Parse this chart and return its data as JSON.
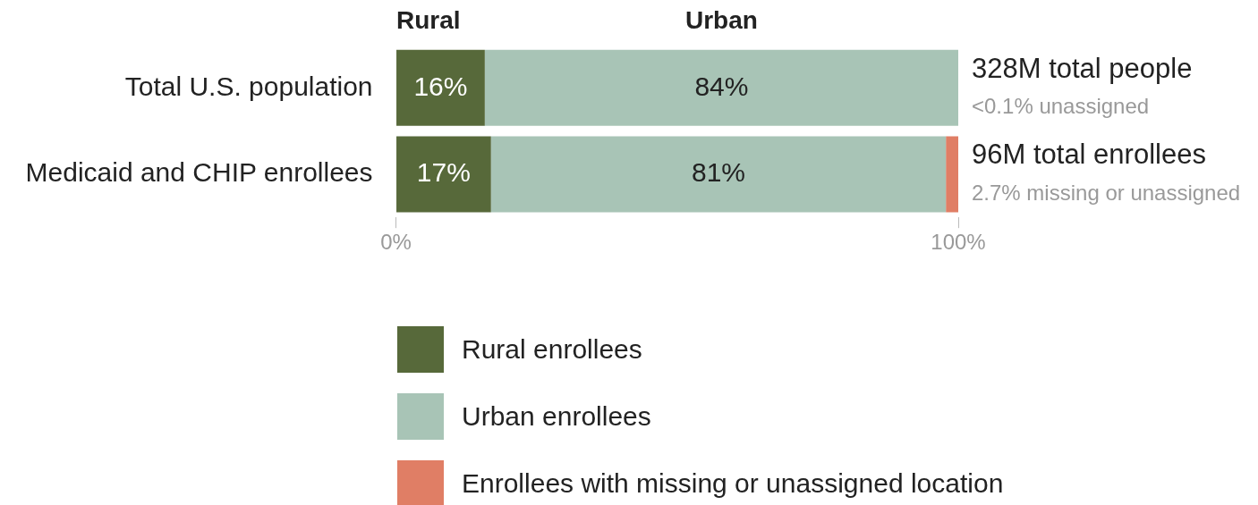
{
  "chart_data": {
    "type": "bar",
    "orientation": "horizontal",
    "stacked": true,
    "categories": [
      "Total U.S. population",
      "Medicaid and CHIP enrollees"
    ],
    "series": [
      {
        "name": "Rural enrollees",
        "color": "#57693a",
        "values": [
          15.8,
          16.9
        ],
        "value_labels": [
          "16%",
          "17%"
        ]
      },
      {
        "name": "Urban enrollees",
        "color": "#a8c4b6",
        "values": [
          84.2,
          80.9
        ],
        "value_labels": [
          "84%",
          "81%"
        ]
      },
      {
        "name": "Enrollees with missing or unassigned location",
        "color": "#e07e65",
        "values": [
          null,
          2.2
        ]
      }
    ],
    "xlim": [
      0,
      100
    ],
    "xticks": [
      {
        "value": 0,
        "label": "0%"
      },
      {
        "value": 100,
        "label": "100%"
      }
    ],
    "annotations": [
      "Rural",
      "Urban",
      "328M total people",
      "<0.1% unassigned",
      "96M total enrollees",
      "2.7% missing or unassigned"
    ],
    "grid": false,
    "legend": "bottom"
  }
}
